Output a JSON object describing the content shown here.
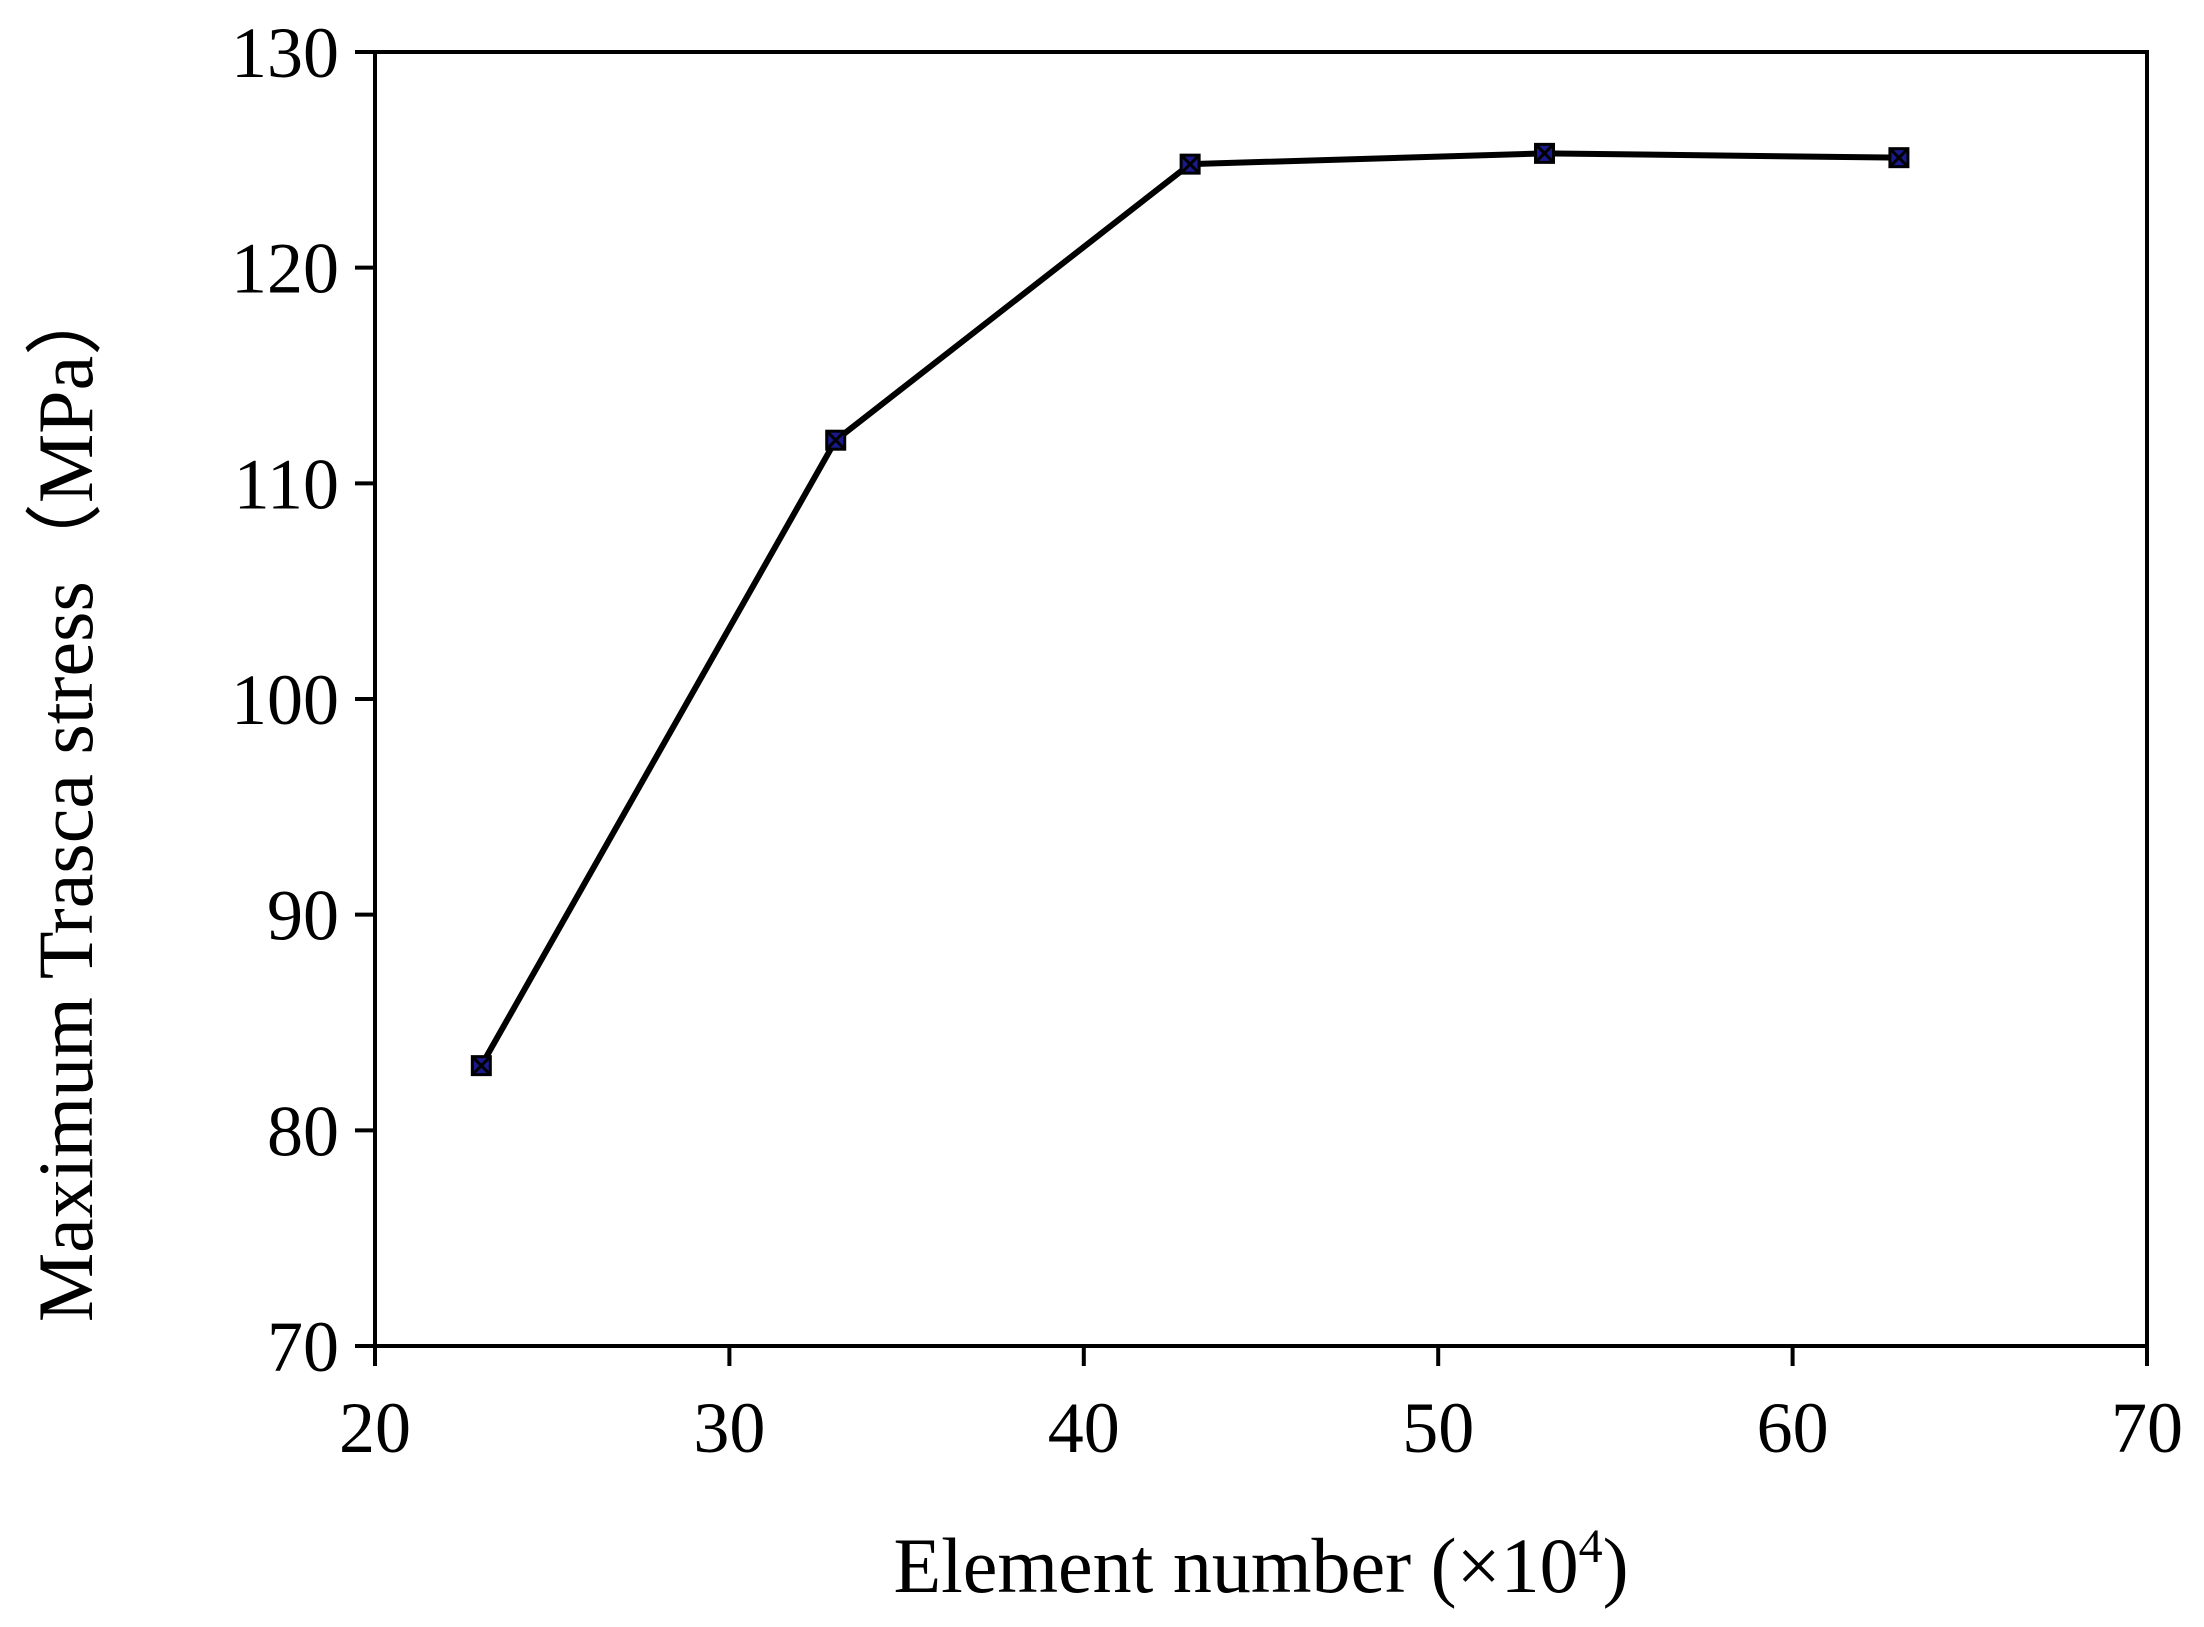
{
  "chart_data": {
    "type": "line",
    "title": "",
    "xlabel": "Element number (×10",
    "xlabel_superscript": "4",
    "xlabel_suffix": ")",
    "ylabel": "Maximum Trasca stress（MPa）",
    "xlim": [
      20,
      70
    ],
    "ylim": [
      70,
      130
    ],
    "xticks": [
      20,
      30,
      40,
      50,
      60,
      70
    ],
    "yticks": [
      70,
      80,
      90,
      100,
      110,
      120,
      130
    ],
    "grid": false,
    "legend": "none",
    "series": [
      {
        "x": [
          23,
          33,
          43,
          53,
          63
        ],
        "y": [
          83.0,
          112.0,
          124.8,
          125.3,
          125.1
        ],
        "line_color": "#000000",
        "marker": "square-x",
        "marker_color": "#1a1a8c"
      }
    ]
  }
}
